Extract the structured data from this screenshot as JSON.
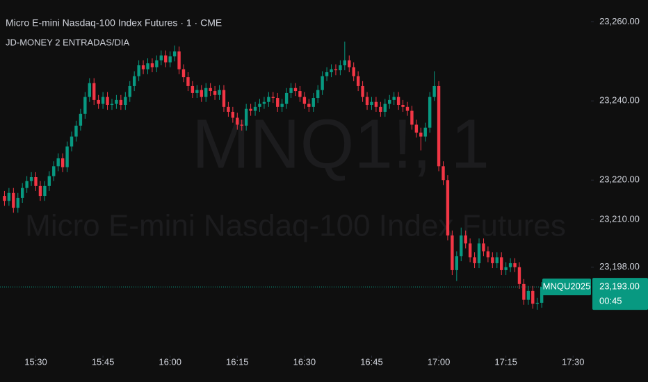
{
  "chart_data": {
    "type": "candlestick",
    "title": "Micro E-mini Nasdaq-100 Index Futures · 1 · CME",
    "subtitle": "JD-MONEY 2 ENTRADAS/DIA",
    "watermark_symbol": "MNQ1!, 1",
    "watermark_name": "Micro E-mini Nasdaq-100 Index Futures",
    "symbol_label": "MNQU2025",
    "last_price": {
      "value": 23193,
      "label": "23,193.00"
    },
    "countdown": "00:45",
    "up_color": "#089981",
    "down_color": "#f23645",
    "grid": false,
    "xlim": [
      "15:22",
      "17:34"
    ],
    "xticks": [
      "15:30",
      "15:45",
      "16:00",
      "16:15",
      "16:30",
      "16:45",
      "17:00",
      "17:15",
      "17:30"
    ],
    "ylim": [
      23176,
      23265.5
    ],
    "yticks": [
      {
        "value": 23260,
        "label": "23,260.00"
      },
      {
        "value": 23240,
        "label": "23,240.00"
      },
      {
        "value": 23220,
        "label": "23,220.00"
      },
      {
        "value": 23210,
        "label": "23,210.00"
      },
      {
        "value": 23198,
        "label": "23,198.00"
      }
    ],
    "x": [
      "15:23",
      "15:24",
      "15:25",
      "15:26",
      "15:27",
      "15:28",
      "15:29",
      "15:30",
      "15:31",
      "15:32",
      "15:33",
      "15:34",
      "15:35",
      "15:36",
      "15:37",
      "15:38",
      "15:39",
      "15:40",
      "15:41",
      "15:42",
      "15:43",
      "15:44",
      "15:45",
      "15:46",
      "15:47",
      "15:48",
      "15:49",
      "15:50",
      "15:51",
      "15:52",
      "15:53",
      "15:54",
      "15:55",
      "15:56",
      "15:57",
      "15:58",
      "15:59",
      "16:00",
      "16:01",
      "16:02",
      "16:03",
      "16:04",
      "16:05",
      "16:06",
      "16:07",
      "16:08",
      "16:09",
      "16:10",
      "16:11",
      "16:12",
      "16:13",
      "16:14",
      "16:15",
      "16:16",
      "16:17",
      "16:18",
      "16:19",
      "16:20",
      "16:21",
      "16:22",
      "16:23",
      "16:24",
      "16:25",
      "16:26",
      "16:27",
      "16:28",
      "16:29",
      "16:30",
      "16:31",
      "16:32",
      "16:33",
      "16:34",
      "16:35",
      "16:36",
      "16:37",
      "16:38",
      "16:39",
      "16:40",
      "16:41",
      "16:42",
      "16:43",
      "16:44",
      "16:45",
      "16:46",
      "16:47",
      "16:48",
      "16:49",
      "16:50",
      "16:51",
      "16:52",
      "16:53",
      "16:54",
      "16:55",
      "16:56",
      "16:57",
      "16:58",
      "16:59",
      "17:00",
      "17:01",
      "17:02",
      "17:03",
      "17:04",
      "17:05",
      "17:06",
      "17:07",
      "17:08",
      "17:09",
      "17:10",
      "17:11",
      "17:12",
      "17:13",
      "17:14",
      "17:15",
      "17:16",
      "17:17",
      "17:18",
      "17:19",
      "17:20",
      "17:21",
      "17:22",
      "17:23"
    ],
    "open": [
      23216,
      23214.75,
      23216.75,
      23213,
      23215.5,
      23218,
      23219.75,
      23220.75,
      23218.5,
      23216,
      23218.5,
      23221,
      23223.5,
      23225.5,
      23223.25,
      23228.5,
      23231,
      23233.75,
      23236.75,
      23241,
      23244.5,
      23240.25,
      23239.25,
      23241,
      23239,
      23239.25,
      23240.25,
      23239,
      23241,
      23243.75,
      23246.25,
      23249,
      23248,
      23249.5,
      23248.5,
      23250.25,
      23251.5,
      23249.75,
      23251.25,
      23252.5,
      23248,
      23246,
      23243.75,
      23242,
      23242.75,
      23241,
      23243.25,
      23242.5,
      23241.5,
      23242.75,
      23238.5,
      23237.25,
      23235.75,
      23234,
      23233.75,
      23238,
      23237.5,
      23238.5,
      23239.25,
      23239.75,
      23241,
      23240.75,
      23238.5,
      23239.25,
      23242,
      23243.25,
      23242.5,
      23241,
      23239.25,
      23238.5,
      23240.75,
      23242.75,
      23246.25,
      23247.25,
      23248,
      23247.75,
      23249,
      23250.25,
      23248.5,
      23246.25,
      23243.75,
      23241,
      23239,
      23239.75,
      23238.5,
      23237.25,
      23239.25,
      23240.25,
      23241,
      23239,
      23238.5,
      23237.5,
      23234,
      23232,
      23231,
      23233.25,
      23241,
      23243.75,
      23223.5,
      23220,
      23206,
      23197.25,
      23200.75,
      23206,
      23204,
      23200.5,
      23199,
      23204,
      23202,
      23200.5,
      23199,
      23200.5,
      23197.25,
      23198,
      23199,
      23198,
      23193.75,
      23189.75,
      23192,
      23188.75,
      23189
    ],
    "high": [
      23217.25,
      23218,
      23218,
      23216.75,
      23219.25,
      23221,
      23222,
      23222,
      23219.75,
      23219.75,
      23222.25,
      23224.75,
      23226.75,
      23226.75,
      23229.75,
      23232.25,
      23235,
      23238,
      23242.25,
      23245.75,
      23245.75,
      23241.5,
      23242.25,
      23242.25,
      23240.5,
      23241.5,
      23241.5,
      23242.25,
      23245,
      23247.5,
      23250.25,
      23250.25,
      23250.75,
      23250.75,
      23251.5,
      23252.75,
      23252.75,
      23252.5,
      23254,
      23253.75,
      23249.25,
      23247.25,
      23245,
      23244,
      23244,
      23244.5,
      23244.5,
      23243.75,
      23244,
      23244,
      23239.75,
      23238.5,
      23237,
      23235.25,
      23239.25,
      23239.25,
      23239.75,
      23240.5,
      23241,
      23242.25,
      23242.25,
      23242,
      23240.5,
      23243.25,
      23244.5,
      23244.5,
      23243.75,
      23242.25,
      23240.5,
      23242,
      23244,
      23247.5,
      23248.5,
      23249.25,
      23249.25,
      23250.25,
      23255,
      23251.5,
      23249.75,
      23247.5,
      23245,
      23242.25,
      23241,
      23241,
      23239.75,
      23240.5,
      23241.5,
      23242.25,
      23242.25,
      23240.25,
      23239.75,
      23238.75,
      23235.25,
      23233.25,
      23234.5,
      23242.25,
      23247.5,
      23245,
      23224.75,
      23221.25,
      23207.25,
      23202,
      23208,
      23207.25,
      23205.25,
      23201.75,
      23205.25,
      23205.25,
      23203.25,
      23201.75,
      23201.75,
      23201.75,
      23199.25,
      23200.25,
      23200.25,
      23199.25,
      23195,
      23193.25,
      23193.25,
      23190.25,
      23194.25
    ],
    "low": [
      23213.5,
      23213.5,
      23211.75,
      23211.75,
      23214.25,
      23216.75,
      23218.5,
      23217.25,
      23214.75,
      23214.75,
      23217.25,
      23219.75,
      23222.25,
      23222,
      23222,
      23227.25,
      23229.75,
      23232.5,
      23235.5,
      23239.75,
      23239,
      23238,
      23238,
      23237.75,
      23237.75,
      23238,
      23237.75,
      23237.75,
      23239.75,
      23242.5,
      23245,
      23246.75,
      23246.75,
      23247.25,
      23247.25,
      23249,
      23248.5,
      23248.5,
      23250,
      23246.75,
      23244.75,
      23242.5,
      23240.75,
      23240.75,
      23239.75,
      23239.75,
      23241.25,
      23240.25,
      23240.25,
      23237.25,
      23236,
      23234.5,
      23232.75,
      23232.5,
      23232.5,
      23236.25,
      23236.25,
      23237.25,
      23238,
      23238.5,
      23239.5,
      23237.25,
      23237.25,
      23238,
      23240.75,
      23241.25,
      23239.75,
      23238,
      23237.25,
      23237.25,
      23239.5,
      23241.5,
      23245,
      23246,
      23246.5,
      23246.5,
      23247.75,
      23247.25,
      23245,
      23242.5,
      23239.75,
      23237.75,
      23237.75,
      23237.25,
      23236,
      23236,
      23238,
      23239,
      23237.75,
      23237.25,
      23236.25,
      23232.75,
      23230.75,
      23227.5,
      23229.75,
      23232,
      23240,
      23222.25,
      23218.75,
      23204.75,
      23196,
      23194.5,
      23199.5,
      23202.75,
      23199.25,
      23197.75,
      23197.75,
      23200.75,
      23199.25,
      23197.75,
      23197.75,
      23196,
      23196,
      23196.75,
      23196.75,
      23192.5,
      23188.5,
      23188.5,
      23187.5,
      23187.25,
      23187.75
    ],
    "close": [
      23214.75,
      23216.75,
      23213,
      23215.5,
      23218,
      23219.75,
      23220.75,
      23218.5,
      23216,
      23218.5,
      23221,
      23223.5,
      23225.5,
      23223.25,
      23228.5,
      23231,
      23233.75,
      23236.75,
      23241,
      23244.5,
      23240.25,
      23239.25,
      23241,
      23239,
      23239.25,
      23240.25,
      23239,
      23241,
      23243.75,
      23246.25,
      23249,
      23248,
      23249.5,
      23248.5,
      23250.25,
      23251.5,
      23249.75,
      23251.25,
      23252.5,
      23248,
      23246,
      23243.75,
      23242,
      23242.75,
      23241,
      23243.25,
      23242.5,
      23241.5,
      23242.75,
      23238.5,
      23237.25,
      23235.75,
      23234,
      23233.75,
      23238,
      23237.5,
      23238.5,
      23239.25,
      23239.75,
      23241,
      23240.75,
      23238.5,
      23239.25,
      23242,
      23243.25,
      23242.5,
      23241,
      23239.25,
      23238.5,
      23240.75,
      23242.75,
      23246.25,
      23247.25,
      23248,
      23247.75,
      23249,
      23250.25,
      23248.5,
      23246.25,
      23243.75,
      23241,
      23239,
      23239.75,
      23238.5,
      23237.25,
      23239.25,
      23240.25,
      23241,
      23239,
      23238.5,
      23237.5,
      23234,
      23232,
      23231,
      23233.25,
      23241,
      23243.75,
      23223.5,
      23220,
      23206,
      23197.25,
      23200.75,
      23206,
      23204,
      23200.5,
      23199,
      23204,
      23202,
      23200.5,
      23199,
      23200.5,
      23197.25,
      23198,
      23199,
      23198,
      23193.75,
      23189.75,
      23192,
      23188.75,
      23189,
      23193
    ]
  }
}
